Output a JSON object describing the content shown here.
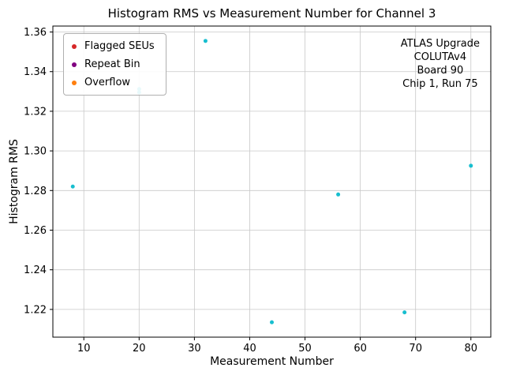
{
  "chart_data": {
    "type": "scatter",
    "title": "Histogram RMS vs Measurement Number for Channel 3",
    "xlabel": "Measurement Number",
    "ylabel": "Histogram RMS",
    "xlim": [
      4.4,
      83.6
    ],
    "ylim": [
      1.206,
      1.363
    ],
    "x_ticks": [
      10,
      20,
      30,
      40,
      50,
      60,
      70,
      80
    ],
    "y_ticks": [
      1.22,
      1.24,
      1.26,
      1.28,
      1.3,
      1.32,
      1.34,
      1.36
    ],
    "grid": true,
    "series": [
      {
        "name": "Histogram RMS measurements",
        "marker": "circle",
        "color": "#17becf",
        "points": [
          [
            8,
            1.282
          ],
          [
            20,
            1.3295
          ],
          [
            20,
            1.3312
          ],
          [
            32,
            1.3555
          ],
          [
            44,
            1.2135
          ],
          [
            56,
            1.278
          ],
          [
            68,
            1.2185
          ],
          [
            80,
            1.2925
          ]
        ]
      }
    ],
    "legend": {
      "position": "upper-left",
      "items": [
        {
          "label": "Flagged SEUs",
          "color": "#d62728"
        },
        {
          "label": "Repeat Bin",
          "color": "#800080"
        },
        {
          "label": "Overflow",
          "color": "#ff7f0e"
        }
      ]
    },
    "annotation": {
      "lines": [
        "ATLAS Upgrade",
        "COLUTAv4",
        "Board 90",
        "Chip 1, Run 75"
      ]
    },
    "colors": {
      "grid": "#c8c8c8",
      "spine": "#000000",
      "background": "#ffffff"
    }
  }
}
